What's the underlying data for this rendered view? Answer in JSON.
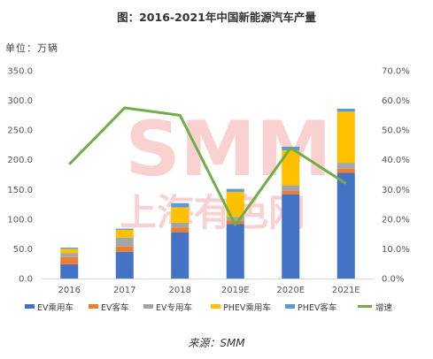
{
  "title": "图：2016-2021年中国新能源汽车产量",
  "unit": "单位：万辆",
  "source": "来源：SMM",
  "watermark": {
    "main": "SMM",
    "sub": "上海有色网"
  },
  "chart_data": {
    "type": "bar",
    "stacked": true,
    "categories": [
      "2016",
      "2017",
      "2018",
      "2019E",
      "2020E",
      "2021E"
    ],
    "series": [
      {
        "name": "EV乘用车",
        "color": "#4472C4",
        "values": [
          24,
          45,
          78,
          92,
          142,
          178
        ]
      },
      {
        "name": "EV客车",
        "color": "#ED7D31",
        "values": [
          12,
          9,
          8,
          6,
          6,
          7
        ]
      },
      {
        "name": "EV专用车",
        "color": "#A5A5A5",
        "values": [
          7,
          15,
          8,
          6,
          9,
          10
        ]
      },
      {
        "name": "PHEV乘用车",
        "color": "#FFC000",
        "values": [
          7,
          13,
          26,
          42,
          59,
          86
        ]
      },
      {
        "name": "PHEV客车",
        "color": "#5B9BD5",
        "values": [
          2,
          2,
          7,
          5,
          6,
          5
        ]
      }
    ],
    "line": {
      "name": "增速",
      "color": "#70AD47",
      "values": [
        38.5,
        57.5,
        55.0,
        18.0,
        44.0,
        32.0
      ]
    },
    "y_left": {
      "min": 0,
      "max": 350,
      "step": 50,
      "ticks": [
        "0.0",
        "50.0",
        "100.0",
        "150.0",
        "200.0",
        "250.0",
        "300.0",
        "350.0"
      ]
    },
    "y_right": {
      "min": 0,
      "max": 70,
      "step": 10,
      "ticks": [
        "0.0%",
        "10.0%",
        "20.0%",
        "30.0%",
        "40.0%",
        "50.0%",
        "60.0%",
        "70.0%"
      ]
    },
    "grid": false,
    "legend_position": "bottom"
  }
}
